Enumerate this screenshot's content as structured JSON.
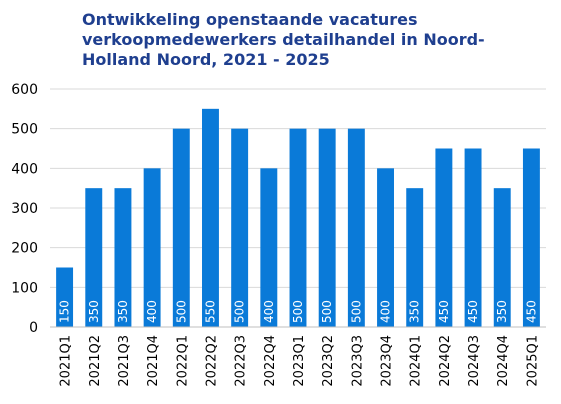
{
  "chart_data": {
    "type": "bar",
    "title": "Ontwikkeling openstaande vacatures verkoopmedewerkers detailhandel in Noord-Holland Noord, 2021 - 2025",
    "categories": [
      "2021Q1",
      "2021Q2",
      "2021Q3",
      "2021Q4",
      "2022Q1",
      "2022Q2",
      "2022Q3",
      "2022Q4",
      "2023Q1",
      "2023Q2",
      "2023Q3",
      "2023Q4",
      "2024Q1",
      "2024Q2",
      "2024Q3",
      "2024Q4",
      "2025Q1"
    ],
    "values": [
      150,
      350,
      350,
      400,
      500,
      550,
      500,
      400,
      500,
      500,
      500,
      400,
      350,
      450,
      450,
      350,
      450
    ],
    "data_labels": [
      "150",
      "350",
      "350",
      "400",
      "500",
      "550",
      "500",
      "400",
      "500",
      "500",
      "500",
      "400",
      "350",
      "450",
      "450",
      "350",
      "450"
    ],
    "yticks": [
      "0",
      "100",
      "200",
      "300",
      "400",
      "500",
      "600"
    ],
    "ylim": [
      0,
      600
    ],
    "grid": true,
    "legend": "none",
    "bar_color": "#0a7ad8",
    "title_color": "#1f3f8f"
  }
}
